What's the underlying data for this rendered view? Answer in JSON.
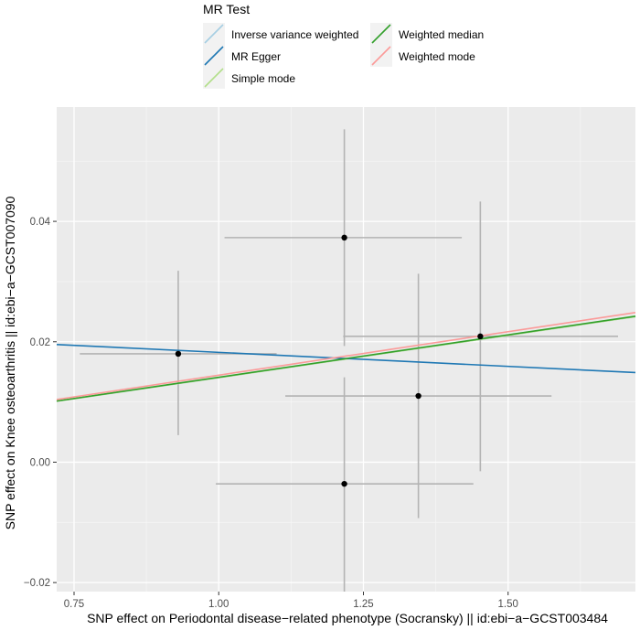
{
  "chart_data": {
    "type": "scatter",
    "title": "",
    "xlabel": "SNP effect on Periodontal disease−related phenotype (Socransky) || id:ebi−a−GCST003484",
    "ylabel": "SNP effect on Knee osteoarthritis || id:ebi−a−GCST007090",
    "xlim": [
      0.72,
      1.72
    ],
    "ylim": [
      -0.0215,
      0.059
    ],
    "xticks": [
      0.75,
      1.0,
      1.25,
      1.5
    ],
    "xtick_labels": [
      "0.75",
      "1.00",
      "1.25",
      "1.50"
    ],
    "yticks": [
      -0.02,
      0.0,
      0.02,
      0.04
    ],
    "ytick_labels": [
      "−0.02",
      "0.00",
      "0.02",
      "0.04"
    ],
    "grid": true,
    "points": [
      {
        "x": 0.93,
        "y": 0.018,
        "xerr_low": 0.76,
        "xerr_high": 1.1,
        "yerr_low": 0.0045,
        "yerr_high": 0.0318
      },
      {
        "x": 1.217,
        "y": 0.0373,
        "xerr_low": 1.01,
        "xerr_high": 1.42,
        "yerr_low": 0.0193,
        "yerr_high": 0.0553
      },
      {
        "x": 1.217,
        "y": -0.0036,
        "xerr_low": 0.995,
        "xerr_high": 1.44,
        "yerr_low": -0.0215,
        "yerr_high": 0.0141
      },
      {
        "x": 1.345,
        "y": 0.011,
        "xerr_low": 1.115,
        "xerr_high": 1.575,
        "yerr_low": -0.0093,
        "yerr_high": 0.0313
      },
      {
        "x": 1.452,
        "y": 0.0209,
        "xerr_low": 1.215,
        "xerr_high": 1.69,
        "yerr_low": -0.0015,
        "yerr_high": 0.0433
      }
    ],
    "legend": {
      "title": "MR Test",
      "position": "top",
      "entries": [
        {
          "name": "Inverse variance weighted",
          "color": "#a6cee3"
        },
        {
          "name": "Weighted median",
          "color": "#33a02c"
        },
        {
          "name": "MR Egger",
          "color": "#1f78b4"
        },
        {
          "name": "Weighted mode",
          "color": "#fb9a99"
        },
        {
          "name": "Simple mode",
          "color": "#b2df8a"
        }
      ]
    },
    "series": [
      {
        "name": "Inverse variance weighted",
        "color": "#a6cee3",
        "intercept": 0.0,
        "slope": 0.01405
      },
      {
        "name": "MR Egger",
        "color": "#1f78b4",
        "intercept": 0.0229,
        "slope": -0.00466
      },
      {
        "name": "Simple mode",
        "color": "#b2df8a",
        "intercept": 0.0,
        "slope": 0.01405
      },
      {
        "name": "Weighted median",
        "color": "#33a02c",
        "intercept": 0.0,
        "slope": 0.0141
      },
      {
        "name": "Weighted mode",
        "color": "#fb9a99",
        "intercept": 0.0,
        "slope": 0.01445
      }
    ]
  }
}
